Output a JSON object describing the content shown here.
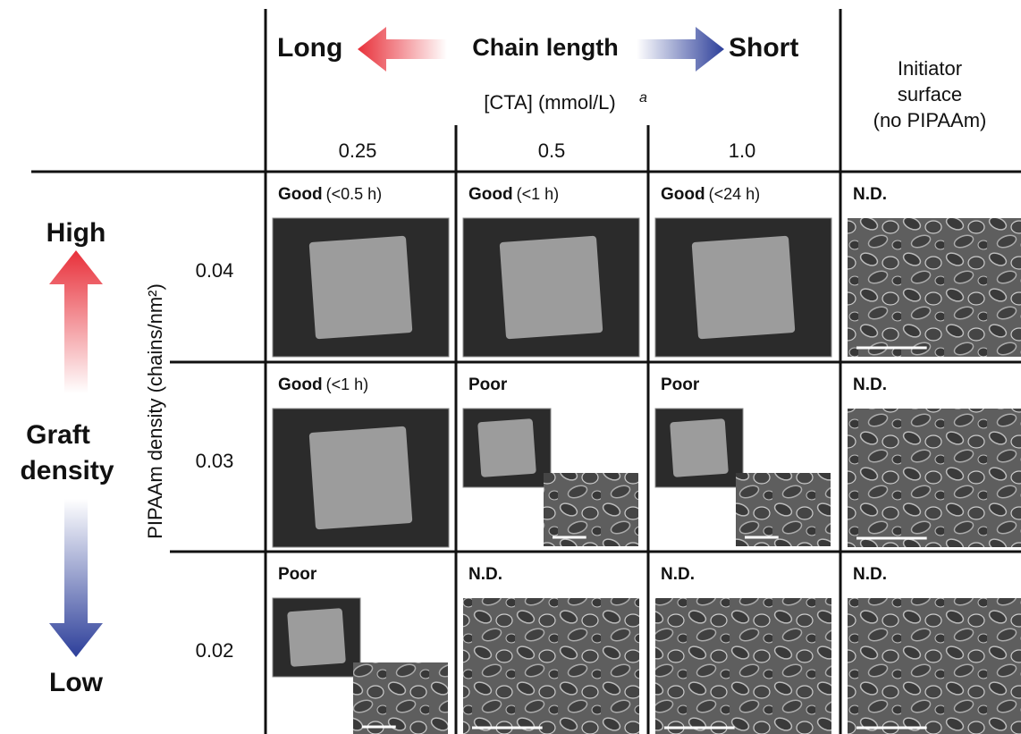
{
  "header": {
    "left": "Long",
    "center": "Chain length",
    "right": "Short",
    "cta": "[CTA]  (mmol/L)",
    "cta_note": "a",
    "initiator": [
      "Initiator",
      "surface",
      "(no PIPAAm)"
    ]
  },
  "columns": [
    "0.25",
    "0.5",
    "1.0"
  ],
  "axis": {
    "high": "High",
    "graft": [
      "Graft",
      "density"
    ],
    "low": "Low",
    "label": "PIPAAm density (chains/nm²)"
  },
  "rows": [
    {
      "density": "0.04",
      "cells": [
        {
          "rating": "Good",
          "time": "(<0.5 h)"
        },
        {
          "rating": "Good",
          "time": "(<1 h)"
        },
        {
          "rating": "Good",
          "time": "(<24 h)"
        },
        {
          "rating": "N.D."
        }
      ]
    },
    {
      "density": "0.03",
      "cells": [
        {
          "rating": "Good",
          "time": "(<1 h)"
        },
        {
          "rating": "Poor"
        },
        {
          "rating": "Poor"
        },
        {
          "rating": "N.D."
        }
      ]
    },
    {
      "density": "0.02",
      "cells": [
        {
          "rating": "Poor"
        },
        {
          "rating": "N.D."
        },
        {
          "rating": "N.D."
        },
        {
          "rating": "N.D."
        }
      ]
    }
  ]
}
